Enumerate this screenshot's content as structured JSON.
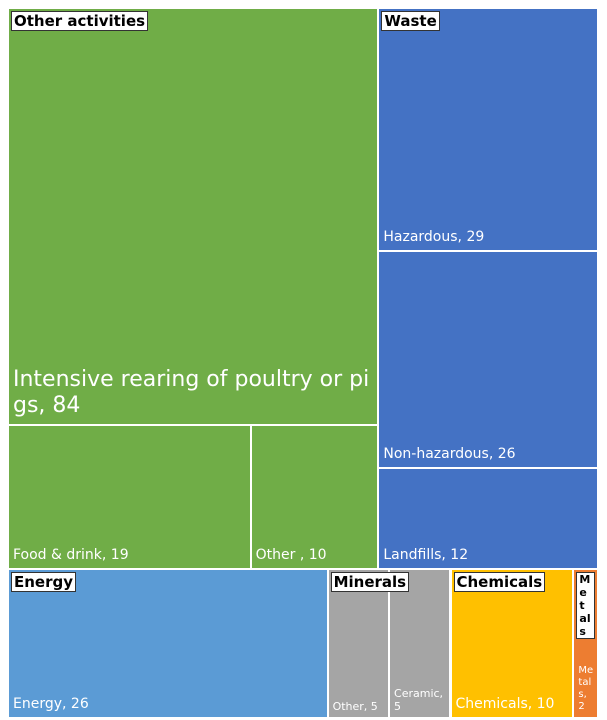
{
  "chart_data": {
    "type": "treemap",
    "groups": [
      {
        "name": "Other activities",
        "color": "#70ad47",
        "children": [
          {
            "label": "Intensive rearing of poultry or pigs, 84",
            "value": 84
          },
          {
            "label": "Food & drink, 19",
            "value": 19
          },
          {
            "label": "Other , 10",
            "value": 10
          }
        ]
      },
      {
        "name": "Waste",
        "color": "#4472c4",
        "children": [
          {
            "label": "Hazardous, 29",
            "value": 29
          },
          {
            "label": "Non-hazardous, 26",
            "value": 26
          },
          {
            "label": "Landfills, 12",
            "value": 12
          }
        ]
      },
      {
        "name": "Energy",
        "color": "#5b9bd5",
        "children": [
          {
            "label": "Energy, 26",
            "value": 26
          }
        ]
      },
      {
        "name": "Minerals",
        "color": "#a5a5a5",
        "children": [
          {
            "label": "Other, 5",
            "value": 5
          },
          {
            "label": "Ceramic, 5",
            "value": 5
          }
        ]
      },
      {
        "name": "Chemicals",
        "color": "#ffc000",
        "children": [
          {
            "label": "Chemicals, 10",
            "value": 10
          }
        ]
      },
      {
        "name": "Metals",
        "color": "#ed7d31",
        "children": [
          {
            "label": "Metals, 2",
            "value": 2
          }
        ]
      }
    ]
  }
}
